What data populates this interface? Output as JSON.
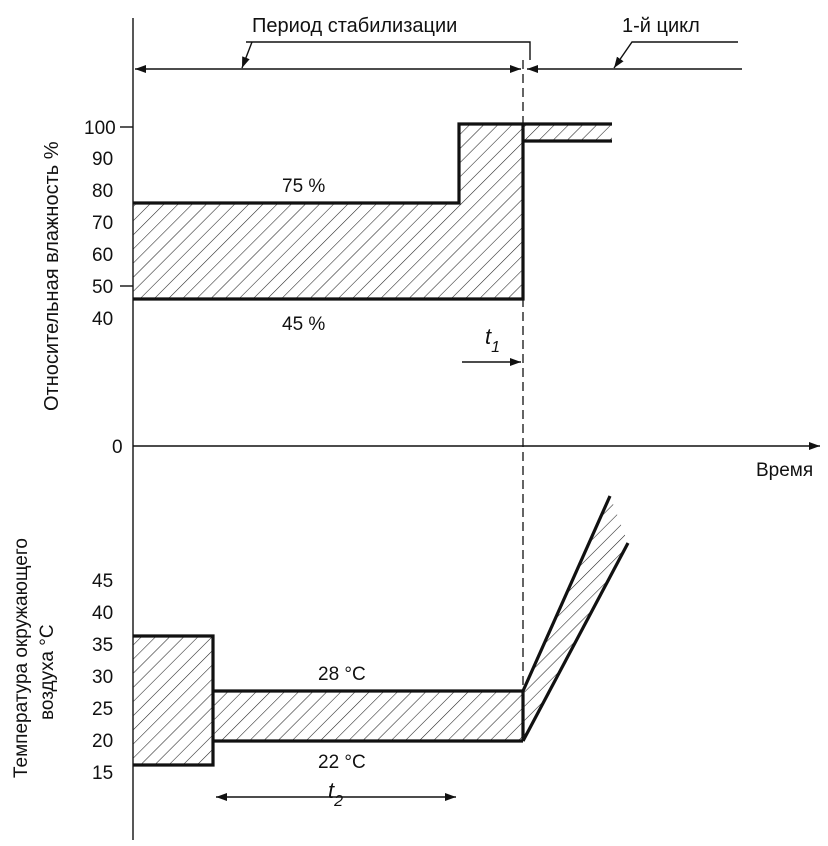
{
  "header": {
    "stabilization_period": "Период стабилизации",
    "first_cycle": "1-й цикл"
  },
  "humidity": {
    "axis_label": "Относительная влажность %",
    "ticks": [
      "100",
      "90",
      "80",
      "70",
      "60",
      "50",
      "40"
    ],
    "upper_label": "75 %",
    "lower_label": "45 %",
    "t1_label": "t",
    "t1_sub": "1"
  },
  "time_axis": {
    "zero": "0",
    "label": "Время"
  },
  "temperature": {
    "axis_label_line1": "Температура окружающего",
    "axis_label_line2": "воздуха °C",
    "ticks": [
      "45",
      "40",
      "35",
      "30",
      "25",
      "20",
      "15"
    ],
    "upper_label": "28 °C",
    "lower_label": "22 °C",
    "t2_label": "t",
    "t2_sub": "2"
  }
}
